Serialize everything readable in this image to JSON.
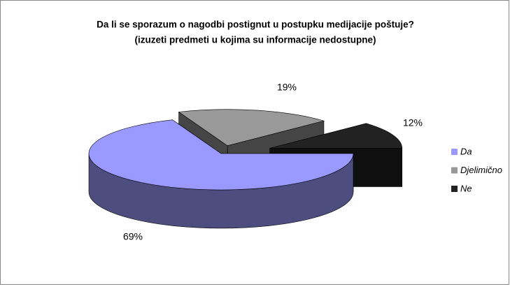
{
  "chart_data": {
    "type": "pie3d",
    "title": "Da li se sporazum o nagodbi postignut u postupku medijacije poštuje?",
    "subtitle": "(izuzeti predmeti u kojima su informacije nedostupne)",
    "categories": [
      "Da",
      "Djelimično",
      "Ne"
    ],
    "values": [
      69,
      19,
      12
    ],
    "value_labels": [
      "69%",
      "19%",
      "12%"
    ],
    "colors": [
      "#9999ff",
      "#999999",
      "#222222"
    ],
    "legend": "right"
  }
}
